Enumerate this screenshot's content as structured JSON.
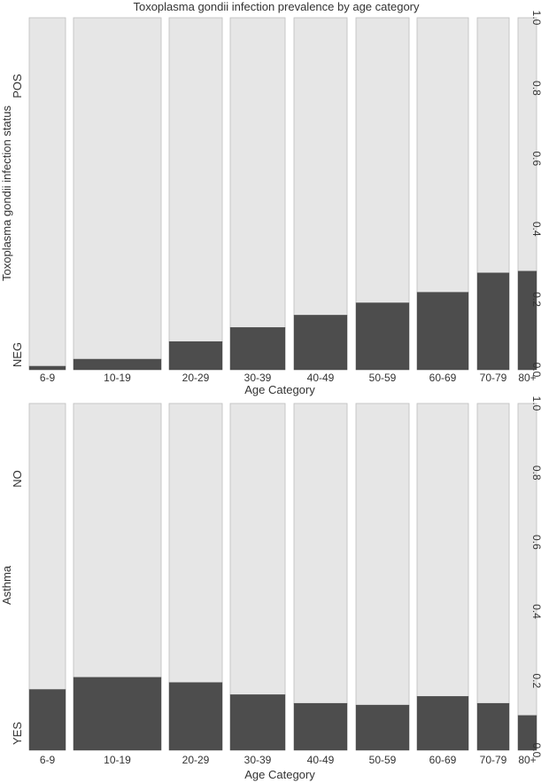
{
  "title": "Toxoplasma gondii infection prevalence by age category",
  "colors": {
    "upper": "#e6e6e6",
    "lower": "#4d4d4d",
    "outline": "#bdbdbd",
    "text": "#333333"
  },
  "chart_data": [
    {
      "type": "bar",
      "stacked": true,
      "variable_widths": true,
      "title": "Toxoplasma gondii infection prevalence by age category",
      "xlabel": "Age Category",
      "ylabel": "Toxoplasma gondii infection status",
      "categories": [
        "6-9",
        "10-19",
        "20-29",
        "30-39",
        "40-49",
        "50-59",
        "60-69",
        "70-79",
        "80+"
      ],
      "levels": {
        "top": "POS",
        "bottom": "NEG"
      },
      "bottom_proportion": [
        0.01,
        0.03,
        0.08,
        0.12,
        0.155,
        0.19,
        0.22,
        0.275,
        0.28
      ],
      "ylim": [
        0,
        1
      ],
      "yticks": [
        "0.0",
        "0.2",
        "0.4",
        "0.6",
        "0.8",
        "1.0"
      ]
    },
    {
      "type": "bar",
      "stacked": true,
      "variable_widths": true,
      "title": "",
      "xlabel": "Age Category",
      "ylabel": "Asthma",
      "categories": [
        "6-9",
        "10-19",
        "20-29",
        "30-39",
        "40-49",
        "50-59",
        "60-69",
        "70-79",
        "80+"
      ],
      "levels": {
        "top": "NO",
        "bottom": "YES"
      },
      "bottom_proportion": [
        0.175,
        0.21,
        0.195,
        0.16,
        0.135,
        0.13,
        0.155,
        0.135,
        0.1
      ],
      "ylim": [
        0,
        1
      ],
      "yticks": [
        "0.0",
        "0.2",
        "0.4",
        "0.6",
        "0.8",
        "1.0"
      ]
    }
  ]
}
